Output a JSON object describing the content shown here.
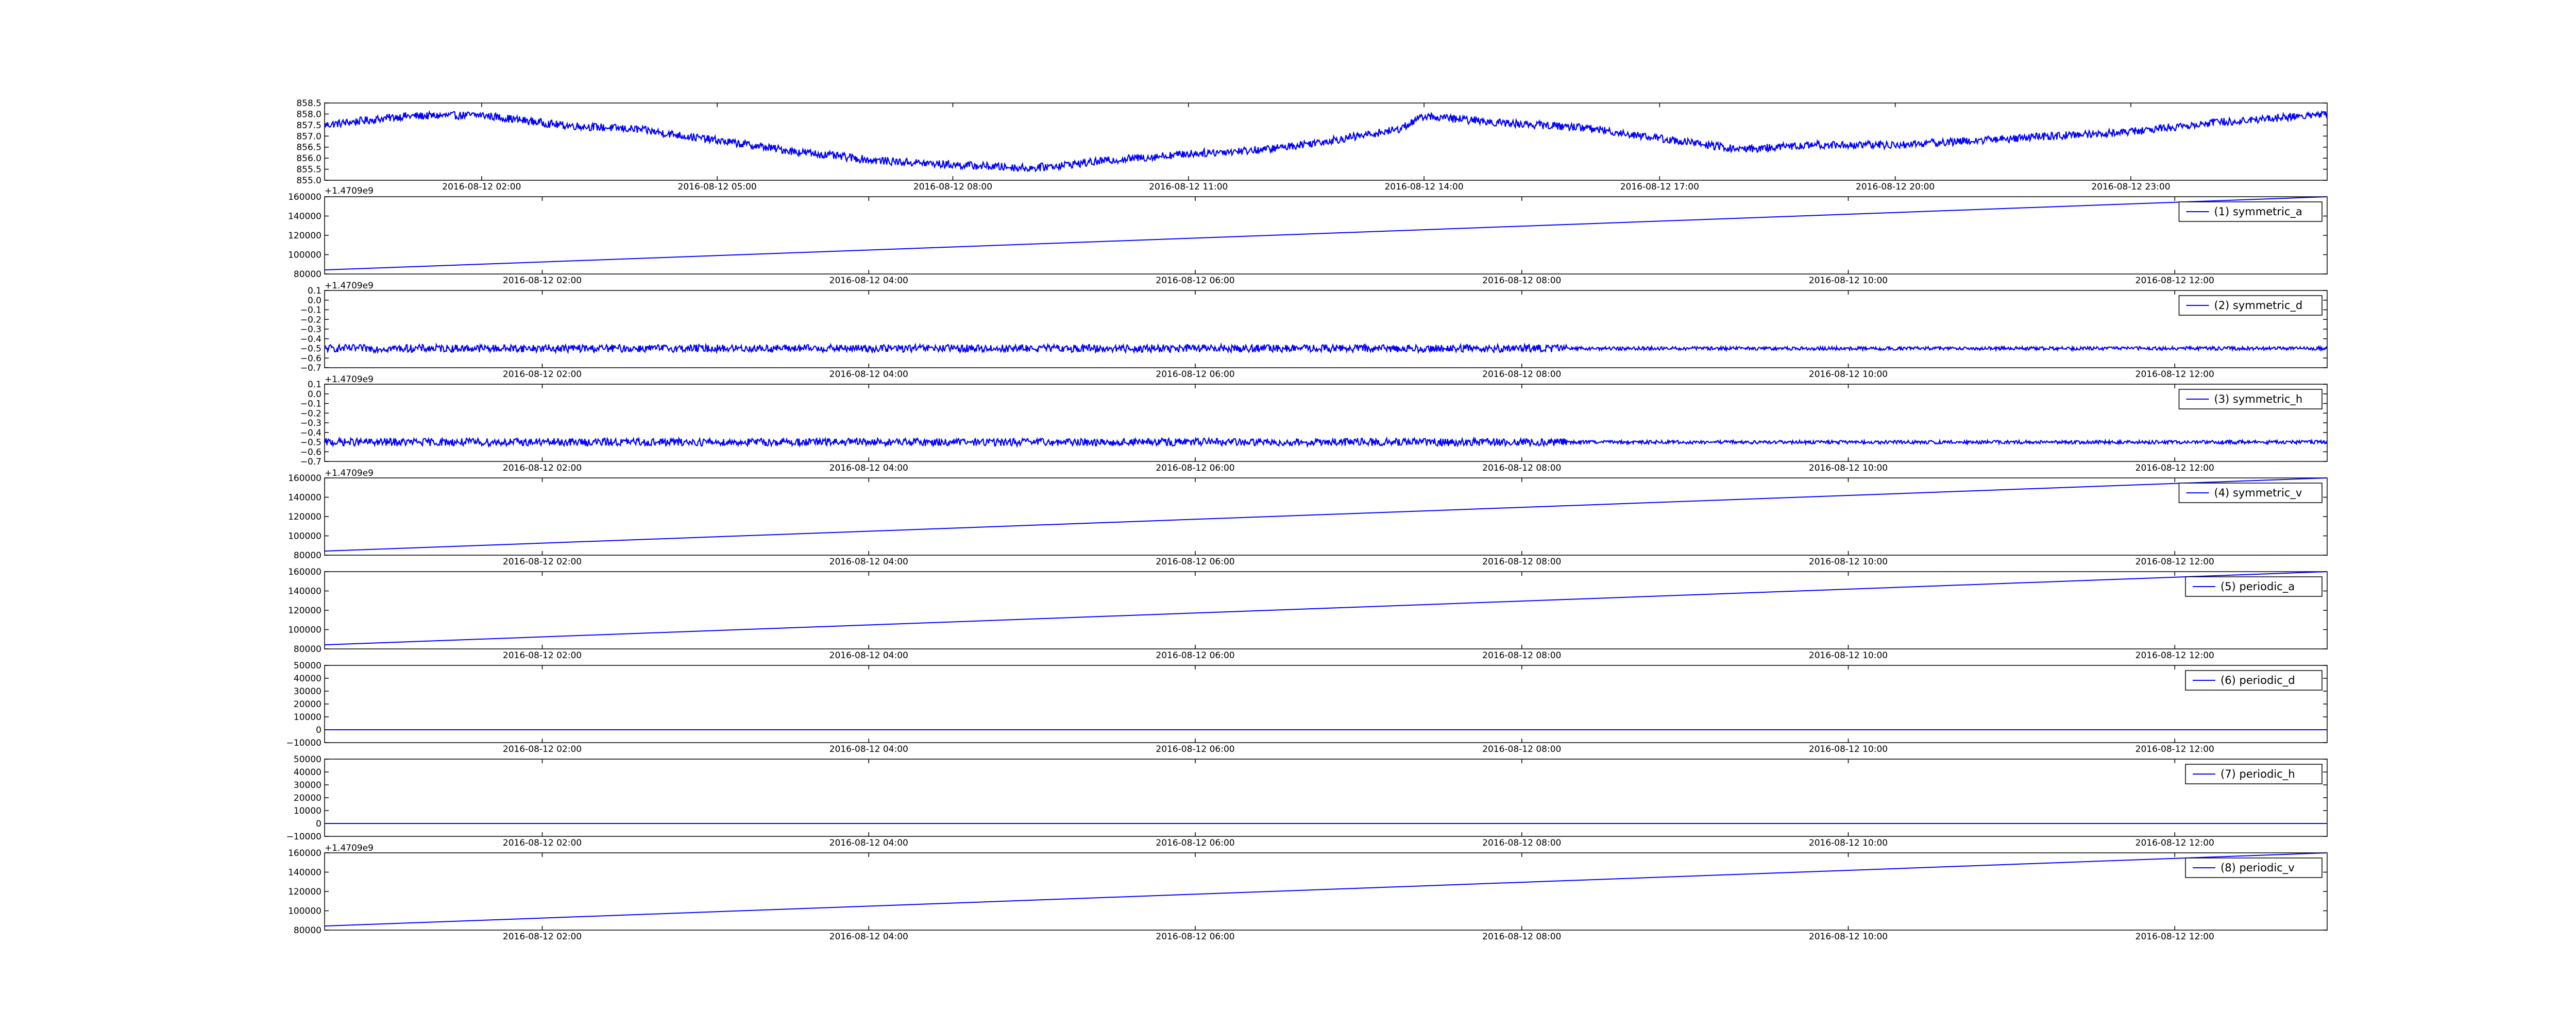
{
  "page": {
    "background": "#ffffff"
  },
  "chart_data": [
    {
      "type": "line",
      "title": "",
      "xlabel": "",
      "ylabel": "",
      "color": "#0000ff",
      "legend": null,
      "x_range": [
        "2016-08-12 00:00",
        "2016-08-13 01:30"
      ],
      "ylim": [
        855.0,
        858.5
      ],
      "yticks": [
        "855.0",
        "855.5",
        "856.0",
        "856.5",
        "857.0",
        "857.5",
        "858.0",
        "858.5"
      ],
      "xticks": [
        "2016-08-12 02:00",
        "2016-08-12 05:00",
        "2016-08-12 08:00",
        "2016-08-12 11:00",
        "2016-08-12 14:00",
        "2016-08-12 17:00",
        "2016-08-12 20:00",
        "2016-08-12 23:00"
      ],
      "noise": 0.18,
      "series": [
        {
          "x": [
            "2016-08-12 00:00",
            "2016-08-12 01:00",
            "2016-08-12 02:00",
            "2016-08-12 03:00",
            "2016-08-12 04:00",
            "2016-08-12 05:00",
            "2016-08-12 06:00",
            "2016-08-12 07:00",
            "2016-08-12 08:00",
            "2016-08-12 09:00",
            "2016-08-12 10:00",
            "2016-08-12 11:00",
            "2016-08-12 12:00",
            "2016-08-12 13:00",
            "2016-08-12 13:40",
            "2016-08-12 14:00",
            "2016-08-12 15:00",
            "2016-08-12 16:00",
            "2016-08-12 17:00",
            "2016-08-12 18:00",
            "2016-08-12 19:00",
            "2016-08-12 20:00",
            "2016-08-12 21:00",
            "2016-08-12 22:00",
            "2016-08-12 23:00",
            "2016-08-13 00:00",
            "2016-08-13 01:30"
          ],
          "y": [
            857.5,
            857.9,
            857.95,
            857.5,
            857.3,
            856.8,
            856.3,
            855.9,
            855.7,
            855.55,
            855.9,
            856.2,
            856.4,
            856.9,
            857.3,
            857.9,
            857.6,
            857.4,
            856.9,
            856.4,
            856.6,
            856.6,
            856.8,
            857.0,
            857.2,
            857.6,
            858.0
          ]
        }
      ]
    },
    {
      "type": "line",
      "title": "",
      "xlabel": "",
      "ylabel": "",
      "color": "#0000ff",
      "x_range": [
        "2016-08-12 00:40",
        "2016-08-12 12:56"
      ],
      "ylim": [
        70000,
        165000
      ],
      "yticks": [
        "80000",
        "100000",
        "120000",
        "140000",
        "160000"
      ],
      "xticks": [
        "2016-08-12 02:00",
        "2016-08-12 04:00",
        "2016-08-12 06:00",
        "2016-08-12 08:00",
        "2016-08-12 10:00",
        "2016-08-12 12:00"
      ],
      "offset_text": "",
      "legend": {
        "label": "(1) symmetric_a",
        "placement": "top-right"
      },
      "noise": 0,
      "series": [
        {
          "name": "(1) symmetric_a",
          "x": [
            "2016-08-12 00:40",
            "2016-08-12 12:56"
          ],
          "y": [
            75000,
            165000
          ]
        }
      ]
    },
    {
      "type": "line",
      "title": "",
      "xlabel": "",
      "ylabel": "",
      "color": "#0000ff",
      "x_range": [
        "2016-08-12 00:40",
        "2016-08-12 12:56"
      ],
      "ylim": [
        -0.7,
        0.1
      ],
      "yticks": [
        "−0.7",
        "−0.6",
        "−0.5",
        "−0.4",
        "−0.3",
        "−0.2",
        "−0.1",
        "0.0",
        "0.1"
      ],
      "xticks": [
        "2016-08-12 02:00",
        "2016-08-12 04:00",
        "2016-08-12 06:00",
        "2016-08-12 08:00",
        "2016-08-12 10:00",
        "2016-08-12 12:00"
      ],
      "offset_text": "+1.4709e9",
      "legend": {
        "label": "(2) symmetric_d",
        "placement": "top-right"
      },
      "noise": 0.04,
      "series": [
        {
          "name": "(2) symmetric_d",
          "x": [
            "2016-08-12 00:40",
            "2016-08-12 12:56"
          ],
          "y": [
            -0.5,
            -0.5
          ]
        }
      ]
    },
    {
      "type": "line",
      "title": "",
      "xlabel": "",
      "ylabel": "",
      "color": "#0000ff",
      "x_range": [
        "2016-08-12 00:40",
        "2016-08-12 12:56"
      ],
      "ylim": [
        -0.7,
        0.1
      ],
      "yticks": [
        "−0.7",
        "−0.6",
        "−0.5",
        "−0.4",
        "−0.3",
        "−0.2",
        "−0.1",
        "0.0",
        "0.1"
      ],
      "xticks": [
        "2016-08-12 02:00",
        "2016-08-12 04:00",
        "2016-08-12 06:00",
        "2016-08-12 08:00",
        "2016-08-12 10:00",
        "2016-08-12 12:00"
      ],
      "offset_text": "+1.4709e9",
      "legend": {
        "label": "(3) symmetric_h",
        "placement": "top-right"
      },
      "noise": 0.04,
      "series": [
        {
          "name": "(3) symmetric_h",
          "x": [
            "2016-08-12 00:40",
            "2016-08-12 12:56"
          ],
          "y": [
            -0.5,
            -0.5
          ]
        }
      ]
    },
    {
      "type": "line",
      "title": "",
      "xlabel": "",
      "ylabel": "",
      "color": "#0000ff",
      "x_range": [
        "2016-08-12 00:40",
        "2016-08-12 12:56"
      ],
      "ylim": [
        70000,
        165000
      ],
      "yticks": [
        "80000",
        "100000",
        "120000",
        "140000",
        "160000"
      ],
      "xticks": [
        "2016-08-12 02:00",
        "2016-08-12 04:00",
        "2016-08-12 06:00",
        "2016-08-12 08:00",
        "2016-08-12 10:00",
        "2016-08-12 12:00"
      ],
      "offset_text": "+1.4709e9",
      "legend": {
        "label": "(4) symmetric_v",
        "placement": "top-right"
      },
      "noise": 0,
      "series": [
        {
          "name": "(4) symmetric_v",
          "x": [
            "2016-08-12 00:40",
            "2016-08-12 12:56"
          ],
          "y": [
            75000,
            165000
          ]
        }
      ]
    },
    {
      "type": "line",
      "title": "",
      "xlabel": "",
      "ylabel": "",
      "color": "#0000ff",
      "x_range": [
        "2016-08-12 00:40",
        "2016-08-12 12:56"
      ],
      "ylim": [
        70000,
        165000
      ],
      "yticks": [
        "80000",
        "100000",
        "120000",
        "140000",
        "160000"
      ],
      "xticks": [
        "2016-08-12 02:00",
        "2016-08-12 04:00",
        "2016-08-12 06:00",
        "2016-08-12 08:00",
        "2016-08-12 10:00",
        "2016-08-12 12:00"
      ],
      "offset_text": "",
      "legend": {
        "label": "(5) periodic_a",
        "placement": "top-right"
      },
      "noise": 0,
      "series": [
        {
          "name": "(5) periodic_a",
          "x": [
            "2016-08-12 00:40",
            "2016-08-12 12:56"
          ],
          "y": [
            75000,
            165000
          ]
        }
      ]
    },
    {
      "type": "line",
      "title": "",
      "xlabel": "",
      "ylabel": "",
      "color": "#0000ff",
      "x_range": [
        "2016-08-12 00:40",
        "2016-08-12 12:56"
      ],
      "ylim": [
        -10000,
        50000
      ],
      "yticks": [
        "−10000",
        "0",
        "10000",
        "20000",
        "30000",
        "40000",
        "50000"
      ],
      "xticks": [
        "2016-08-12 02:00",
        "2016-08-12 04:00",
        "2016-08-12 06:00",
        "2016-08-12 08:00",
        "2016-08-12 10:00",
        "2016-08-12 12:00"
      ],
      "offset_text": "",
      "legend": {
        "label": "(6) periodic_d",
        "placement": "top-right"
      },
      "noise": 0,
      "series": [
        {
          "name": "(6) periodic_d",
          "x": [
            "2016-08-12 00:40",
            "2016-08-12 12:56"
          ],
          "y": [
            0,
            0
          ]
        }
      ]
    },
    {
      "type": "line",
      "title": "",
      "xlabel": "",
      "ylabel": "",
      "color": "#0000ff",
      "x_range": [
        "2016-08-12 00:40",
        "2016-08-12 12:56"
      ],
      "ylim": [
        -10000,
        50000
      ],
      "yticks": [
        "−10000",
        "0",
        "10000",
        "20000",
        "30000",
        "40000",
        "50000"
      ],
      "xticks": [
        "2016-08-12 02:00",
        "2016-08-12 04:00",
        "2016-08-12 06:00",
        "2016-08-12 08:00",
        "2016-08-12 10:00",
        "2016-08-12 12:00"
      ],
      "offset_text": "",
      "legend": {
        "label": "(7) periodic_h",
        "placement": "top-right"
      },
      "noise": 0,
      "series": [
        {
          "name": "(7) periodic_h",
          "x": [
            "2016-08-12 00:40",
            "2016-08-12 12:56"
          ],
          "y": [
            0,
            0
          ]
        }
      ]
    },
    {
      "type": "line",
      "title": "",
      "xlabel": "",
      "ylabel": "",
      "color": "#0000ff",
      "x_range": [
        "2016-08-12 00:40",
        "2016-08-12 12:56"
      ],
      "ylim": [
        70000,
        165000
      ],
      "yticks": [
        "80000",
        "100000",
        "120000",
        "140000",
        "160000"
      ],
      "xticks": [
        "2016-08-12 02:00",
        "2016-08-12 04:00",
        "2016-08-12 06:00",
        "2016-08-12 08:00",
        "2016-08-12 10:00",
        "2016-08-12 12:00"
      ],
      "offset_text": "+1.4709e9",
      "legend": {
        "label": "(8) periodic_v",
        "placement": "top-right"
      },
      "noise": 0,
      "series": [
        {
          "name": "(8) periodic_v",
          "x": [
            "2016-08-12 00:40",
            "2016-08-12 12:56"
          ],
          "y": [
            75000,
            165000
          ]
        }
      ]
    }
  ],
  "figure_offset_text": "+1.4709e9"
}
